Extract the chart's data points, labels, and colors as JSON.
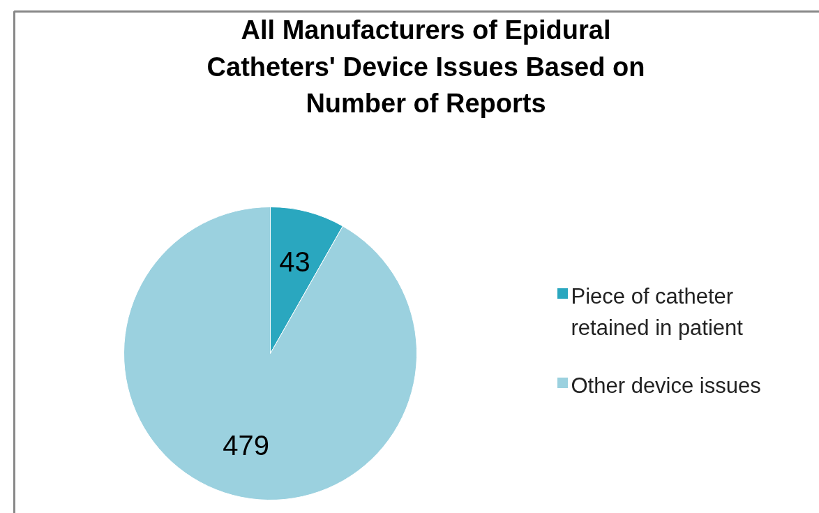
{
  "chart_data": {
    "type": "pie",
    "title": "All Manufacturers of Epidural Catheters' Device Issues Based on Number of Reports",
    "categories": [
      "Piece of catheter retained in patient",
      "Other device issues"
    ],
    "values": [
      43,
      479
    ],
    "colors": [
      "#2aa7bf",
      "#9bd1df"
    ],
    "data_labels": true,
    "legend": "right"
  }
}
